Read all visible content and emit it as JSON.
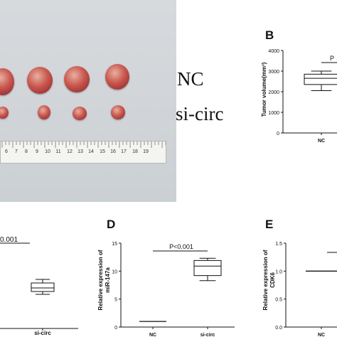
{
  "photo": {
    "group_labels": [
      "NC",
      "si-circ"
    ],
    "ruler_numbers": [
      "6",
      "7",
      "8",
      "9",
      "10",
      "11",
      "12",
      "13",
      "14",
      "15",
      "16",
      "17",
      "18",
      "19"
    ]
  },
  "panels": {
    "B": {
      "letter": "B",
      "ylabel": "Tumor volume(mm³)",
      "yticks": [
        "0",
        "1000",
        "2000",
        "3000",
        "4000"
      ],
      "xticks": [
        "NC"
      ],
      "pvalue": "P"
    },
    "C": {
      "pvalue": "0.001",
      "xticks": [
        "si-circ"
      ]
    },
    "D": {
      "letter": "D",
      "ylabel_line1": "Relative expression of",
      "ylabel_line2": "miR-147a",
      "yticks": [
        "0",
        "5",
        "10",
        "15"
      ],
      "xticks": [
        "NC",
        "si-circ"
      ],
      "pvalue": "P<0.001"
    },
    "E": {
      "letter": "E",
      "ylabel_line1": "Relative expression of",
      "ylabel_line2": "CDK6",
      "yticks": [
        "0.0",
        "0.5",
        "1.0",
        "1.5"
      ],
      "xticks": [
        "NC"
      ]
    }
  },
  "chart_data": [
    {
      "type": "box",
      "panel": "B",
      "ylabel": "Tumor volume(mm³)",
      "ylim": [
        0,
        4000
      ],
      "categories": [
        "NC"
      ],
      "boxes": [
        {
          "min": 2050,
          "q1": 2350,
          "median": 2650,
          "q3": 2850,
          "max": 3000
        }
      ]
    },
    {
      "type": "box",
      "panel": "C",
      "categories": [
        "si-circ"
      ],
      "annotation": "0.001",
      "boxes": [
        {
          "min": null,
          "q1": null,
          "median": null,
          "q3": null,
          "max": null
        }
      ]
    },
    {
      "type": "box",
      "panel": "D",
      "ylabel": "Relative expression of miR-147a",
      "ylim": [
        0,
        15
      ],
      "categories": [
        "NC",
        "si-circ"
      ],
      "annotation": "P<0.001",
      "boxes": [
        {
          "min": 1,
          "q1": 1,
          "median": 1,
          "q3": 1,
          "max": 1
        },
        {
          "min": 8.3,
          "q1": 9.2,
          "median": 10.9,
          "q3": 11.9,
          "max": 12.3
        }
      ]
    },
    {
      "type": "box",
      "panel": "E",
      "ylabel": "Relative expression of CDK6",
      "ylim": [
        0,
        1.5
      ],
      "categories": [
        "NC"
      ],
      "boxes": [
        {
          "min": 1,
          "q1": 1,
          "median": 1,
          "q3": 1,
          "max": 1
        }
      ]
    }
  ]
}
